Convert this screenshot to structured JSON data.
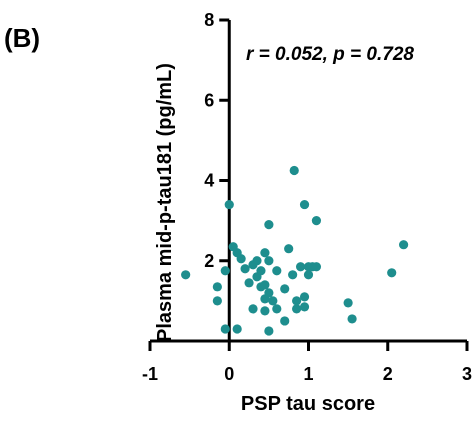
{
  "panel_label": "(B)",
  "annotation": "r = 0.052, p = 0.728",
  "colors": {
    "point": "#1e8e8e",
    "axis": "#000000"
  },
  "chart_data": {
    "type": "scatter",
    "title": "",
    "xlabel": "PSP tau score",
    "ylabel": "Plasma mid-p-tau181 (pg/mL)",
    "xlim": [
      -1,
      3
    ],
    "ylim": [
      0,
      8
    ],
    "xticks": [
      -1,
      0,
      1,
      2,
      3
    ],
    "yticks": [
      2,
      4,
      6,
      8
    ],
    "grid": false,
    "legend": "none",
    "series": [
      {
        "points": [
          [
            -0.55,
            1.65
          ],
          [
            -0.15,
            1.35
          ],
          [
            -0.15,
            1.0
          ],
          [
            -0.05,
            1.75
          ],
          [
            -0.05,
            0.3
          ],
          [
            0.0,
            3.4
          ],
          [
            0.05,
            2.35
          ],
          [
            0.1,
            0.3
          ],
          [
            0.1,
            2.2
          ],
          [
            0.15,
            2.05
          ],
          [
            0.2,
            1.8
          ],
          [
            0.25,
            1.45
          ],
          [
            0.3,
            1.9
          ],
          [
            0.3,
            0.8
          ],
          [
            0.35,
            1.6
          ],
          [
            0.35,
            2.0
          ],
          [
            0.4,
            1.35
          ],
          [
            0.4,
            1.75
          ],
          [
            0.45,
            1.4
          ],
          [
            0.45,
            1.05
          ],
          [
            0.45,
            0.75
          ],
          [
            0.45,
            2.2
          ],
          [
            0.5,
            2.0
          ],
          [
            0.5,
            1.2
          ],
          [
            0.5,
            2.9
          ],
          [
            0.5,
            0.25
          ],
          [
            0.55,
            1.0
          ],
          [
            0.6,
            1.75
          ],
          [
            0.6,
            0.8
          ],
          [
            0.7,
            1.3
          ],
          [
            0.7,
            0.5
          ],
          [
            0.75,
            2.3
          ],
          [
            0.8,
            1.65
          ],
          [
            0.82,
            4.25
          ],
          [
            0.85,
            1.0
          ],
          [
            0.85,
            0.8
          ],
          [
            0.9,
            1.85
          ],
          [
            0.95,
            3.4
          ],
          [
            0.95,
            1.1
          ],
          [
            0.95,
            0.85
          ],
          [
            1.0,
            1.65
          ],
          [
            1.0,
            1.85
          ],
          [
            1.05,
            1.85
          ],
          [
            1.1,
            1.85
          ],
          [
            1.1,
            3.0
          ],
          [
            1.5,
            0.95
          ],
          [
            1.55,
            0.55
          ],
          [
            2.05,
            1.7
          ],
          [
            2.2,
            2.4
          ]
        ]
      }
    ]
  }
}
